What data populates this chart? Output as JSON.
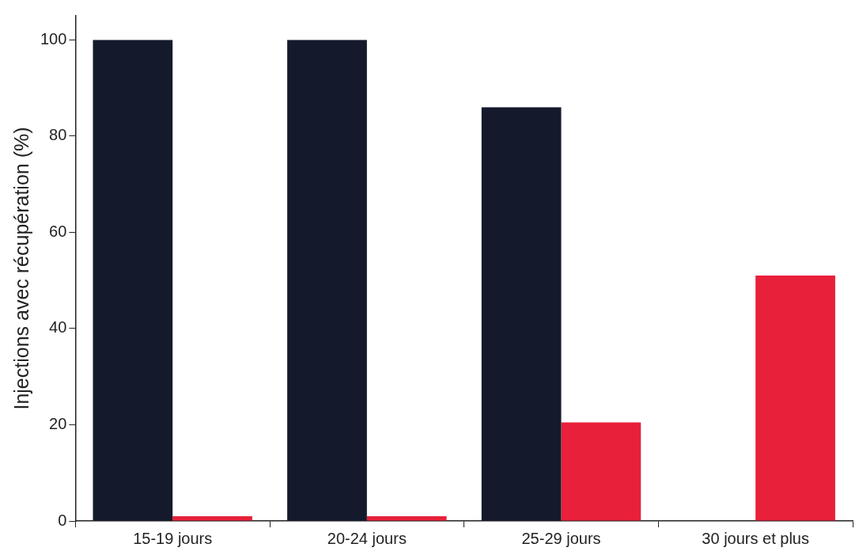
{
  "chart_data": {
    "type": "bar",
    "ylabel": "Injections avec récupération (%)",
    "categories": [
      "15-19 jours",
      "20-24 jours",
      "25-29 jours",
      "30 jours et plus"
    ],
    "series": [
      {
        "color": "#141a2c",
        "values": [
          100,
          100,
          86,
          null
        ]
      },
      {
        "color": "#e8203a",
        "values": [
          1,
          1,
          20.5,
          51
        ]
      }
    ],
    "ylim": [
      0,
      105
    ],
    "yticks": [
      0,
      20,
      40,
      60,
      80,
      100
    ],
    "grid": false,
    "legend": false
  }
}
